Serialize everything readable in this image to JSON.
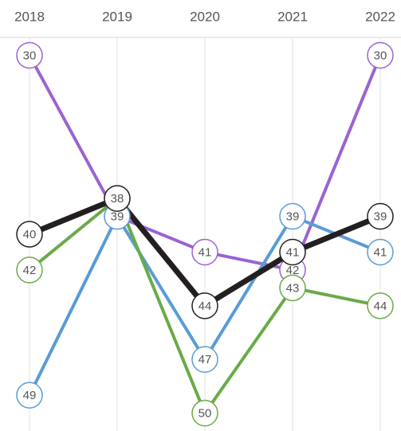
{
  "chart_data": {
    "type": "bump",
    "categories": [
      "2018",
      "2019",
      "2020",
      "2021",
      "2022"
    ],
    "ylim": [
      29,
      51
    ],
    "y_inverted": true,
    "series": [
      {
        "color": "#9b63d1",
        "values": [
          30,
          39,
          41,
          42,
          30
        ]
      },
      {
        "color": "#5a9bd6",
        "values": [
          49,
          39,
          47,
          39,
          41
        ]
      },
      {
        "color": "#6aaa48",
        "values": [
          42,
          38,
          50,
          43,
          44
        ]
      },
      {
        "color": "#231f20",
        "values": [
          40,
          38,
          44,
          41,
          39
        ]
      }
    ]
  }
}
